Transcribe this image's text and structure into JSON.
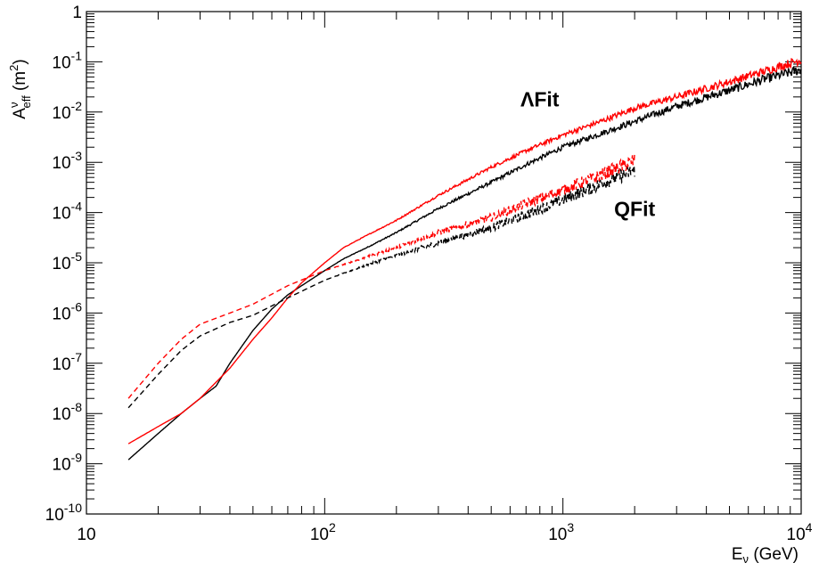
{
  "chart_data": {
    "type": "line",
    "title": "",
    "xscale": "log",
    "yscale": "log",
    "xlim": [
      10,
      10000
    ],
    "ylim": [
      1e-10,
      1
    ],
    "grid": false,
    "legend": "none",
    "x_axis_label": {
      "main": "E",
      "sub": "ν",
      "unit": " (GeV)"
    },
    "y_axis_label": {
      "main": "A",
      "sup": "ν",
      "sub": "eff",
      "unit_open": " (m",
      "unit_sup": "2",
      "unit_close": ")"
    },
    "x_ticks": [
      {
        "value": 10,
        "base": "10",
        "exp": ""
      },
      {
        "value": 100,
        "base": "10",
        "exp": "2"
      },
      {
        "value": 1000,
        "base": "10",
        "exp": "3"
      },
      {
        "value": 10000,
        "base": "10",
        "exp": "4"
      }
    ],
    "y_ticks": [
      {
        "value": 1,
        "base": "1",
        "exp": ""
      },
      {
        "value": 0.1,
        "base": "10",
        "exp": "-1"
      },
      {
        "value": 0.01,
        "base": "10",
        "exp": "-2"
      },
      {
        "value": 0.001,
        "base": "10",
        "exp": "-3"
      },
      {
        "value": 0.0001,
        "base": "10",
        "exp": "-4"
      },
      {
        "value": 1e-05,
        "base": "10",
        "exp": "-5"
      },
      {
        "value": 1e-06,
        "base": "10",
        "exp": "-6"
      },
      {
        "value": 1e-07,
        "base": "10",
        "exp": "-7"
      },
      {
        "value": 1e-08,
        "base": "10",
        "exp": "-8"
      },
      {
        "value": 1e-09,
        "base": "10",
        "exp": "-9"
      },
      {
        "value": 1e-10,
        "base": "10",
        "exp": "-10"
      }
    ],
    "annotations": [
      {
        "text": "ΛFit",
        "x": 800,
        "y": 0.013
      },
      {
        "text": "QFit",
        "x": 2000,
        "y": 8.5e-05
      }
    ],
    "series": [
      {
        "color": "#ff0000",
        "style": "solid",
        "noise": 0.18,
        "x": [
          15,
          20,
          25,
          30,
          40,
          50,
          60,
          70,
          80,
          100,
          120,
          150,
          200,
          300,
          500,
          700,
          1000,
          1500,
          2000,
          3000,
          5000,
          7000,
          10000
        ],
        "y": [
          2.5e-09,
          5.5e-09,
          1e-08,
          2e-08,
          8e-08,
          3e-07,
          8e-07,
          2e-06,
          4e-06,
          1e-05,
          2e-05,
          3.5e-05,
          7e-05,
          0.00022,
          0.0008,
          0.0017,
          0.0035,
          0.007,
          0.012,
          0.02,
          0.04,
          0.065,
          0.11
        ]
      },
      {
        "color": "#000000",
        "style": "solid",
        "noise": 0.2,
        "x": [
          15,
          20,
          25,
          30,
          35,
          40,
          50,
          60,
          70,
          80,
          100,
          120,
          150,
          200,
          300,
          500,
          700,
          1000,
          1500,
          2000,
          3000,
          5000,
          7000,
          10000
        ],
        "y": [
          1.2e-09,
          4e-09,
          1e-08,
          2e-08,
          3.5e-08,
          1e-07,
          4.5e-07,
          1.2e-06,
          2.3e-06,
          3.5e-06,
          7e-06,
          1.2e-05,
          2e-05,
          4e-05,
          0.00012,
          0.0004,
          0.0009,
          0.002,
          0.004,
          0.0065,
          0.013,
          0.027,
          0.045,
          0.07
        ]
      },
      {
        "color": "#ff0000",
        "style": "dashed",
        "noise": 0.45,
        "x": [
          15,
          20,
          25,
          30,
          40,
          50,
          70,
          100,
          150,
          200,
          300,
          500,
          700,
          1000,
          1500,
          2000
        ],
        "y": [
          2e-08,
          1e-07,
          3e-07,
          6e-07,
          1e-06,
          1.5e-06,
          3.5e-06,
          7e-06,
          1.3e-05,
          2e-05,
          4e-05,
          8e-05,
          0.00015,
          0.00028,
          0.0006,
          0.0011
        ]
      },
      {
        "color": "#000000",
        "style": "dashed",
        "noise": 0.45,
        "x": [
          15,
          20,
          25,
          30,
          40,
          50,
          70,
          100,
          150,
          200,
          300,
          500,
          700,
          1000,
          1500,
          2000
        ],
        "y": [
          1.3e-08,
          6e-08,
          1.8e-07,
          3.5e-07,
          6.5e-07,
          9e-07,
          2e-06,
          4.5e-06,
          9e-06,
          1.4e-05,
          2.5e-05,
          5e-05,
          9e-05,
          0.00018,
          0.0004,
          0.0007
        ]
      }
    ]
  }
}
